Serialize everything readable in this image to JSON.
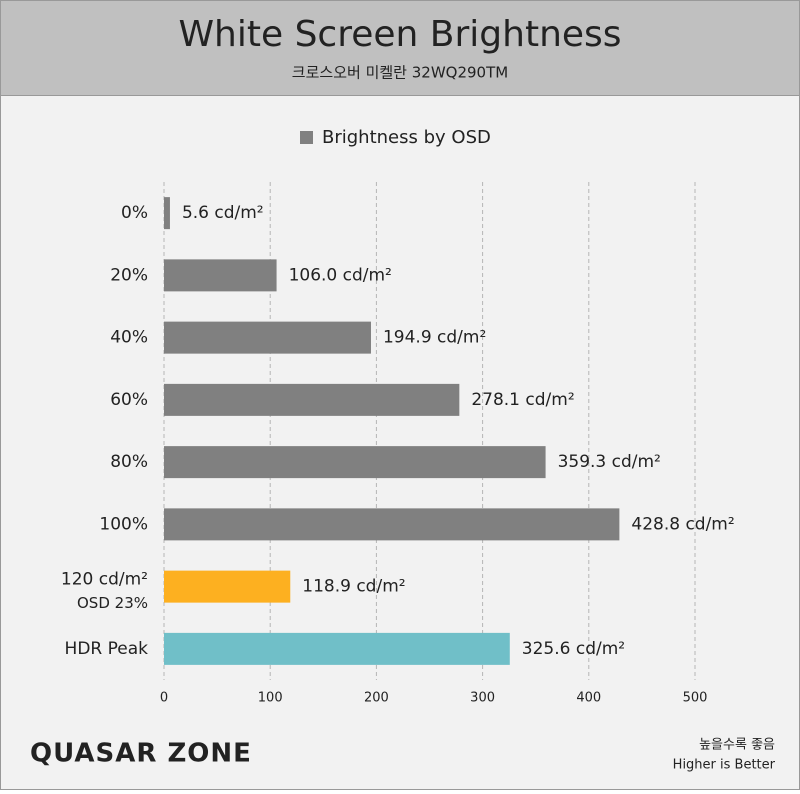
{
  "chart_data": {
    "type": "hbar",
    "title": "White Screen Brightness",
    "subtitle": "크로스오버 미켈란 32WQ290TM",
    "categories": [
      "0%",
      "20%",
      "40%",
      "60%",
      "80%",
      "100%",
      "120 cd/m²",
      "HDR Peak"
    ],
    "category_sublabels": [
      null,
      null,
      null,
      null,
      null,
      null,
      "OSD 23%",
      null
    ],
    "series": [
      {
        "name": "Brightness by OSD",
        "color": "#808080",
        "values": [
          5.6,
          106.0,
          194.9,
          278.1,
          359.3,
          428.8,
          118.9,
          325.6
        ],
        "value_labels": [
          "5.6 cd/m²",
          "106.0 cd/m²",
          "194.9 cd/m²",
          "278.1 cd/m²",
          "359.3 cd/m²",
          "428.8 cd/m²",
          "118.9 cd/m²",
          "325.6 cd/m²"
        ],
        "colors": [
          "#808080",
          "#808080",
          "#808080",
          "#808080",
          "#808080",
          "#808080",
          "#fdb020",
          "#70bfc8"
        ]
      }
    ],
    "xlim": [
      0,
      500
    ],
    "xticks": [
      0,
      100,
      200,
      300,
      400,
      500
    ],
    "grid": true,
    "legend": "top",
    "source_logo": "QUASAR ZONE",
    "footnotes": [
      "높을수록 좋음",
      "Higher is Better"
    ]
  }
}
